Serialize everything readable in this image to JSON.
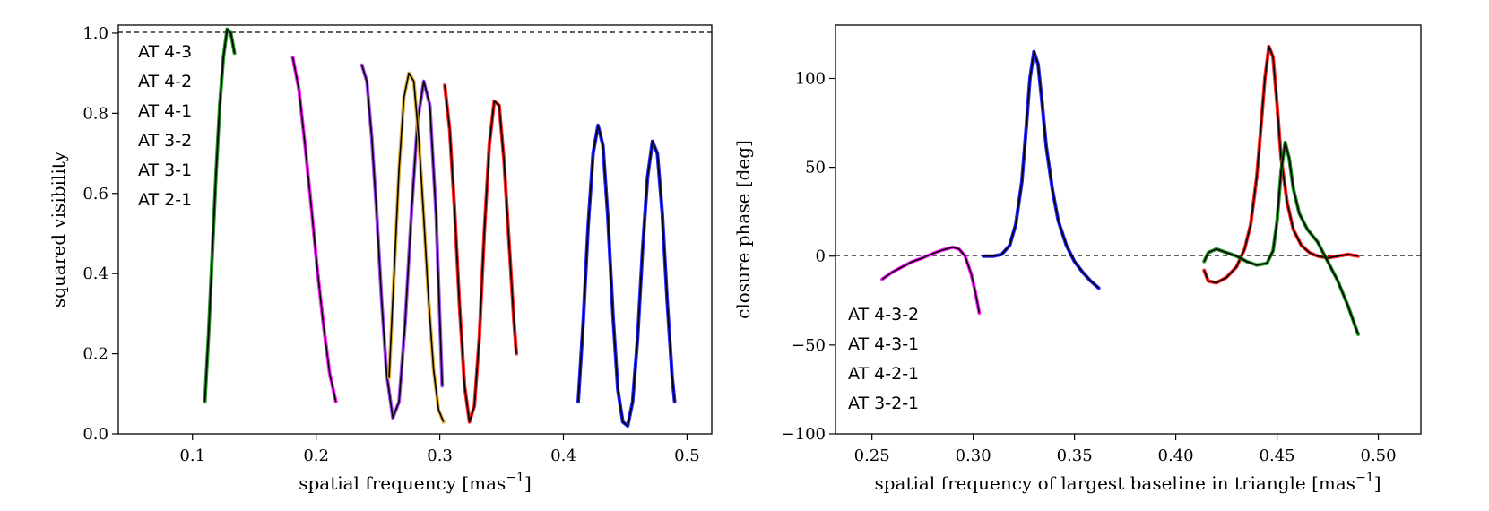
{
  "chart_data": [
    {
      "type": "line",
      "xlabel": "spatial frequency [mas",
      "xlabel_sup": "−1",
      "xlabel_end": "]",
      "ylabel": "squared visibility",
      "xlim": [
        0.04,
        0.52
      ],
      "ylim": [
        0.0,
        1.02
      ],
      "xticks": [
        "0.1",
        "0.2",
        "0.3",
        "0.4",
        "0.5"
      ],
      "yticks": [
        "0.0",
        "0.2",
        "0.4",
        "0.6",
        "0.8",
        "1.0"
      ],
      "reference_line": 1.0,
      "legend_position": "top-left",
      "series": [
        {
          "name": "AT 4-3",
          "color": "#ff0000"
        },
        {
          "name": "AT 4-2",
          "color": "#0000ff"
        },
        {
          "name": "AT 4-1",
          "color": "#9933ee"
        },
        {
          "name": "AT 3-2",
          "color": "#008000"
        },
        {
          "name": "AT 3-1",
          "color": "#ff00ff"
        },
        {
          "name": "AT 2-1",
          "color": "#daa520"
        }
      ],
      "segments": [
        {
          "color": "#008000",
          "x": [
            0.11,
            0.113,
            0.116,
            0.119,
            0.122,
            0.125,
            0.128,
            0.131,
            0.134
          ],
          "y": [
            0.08,
            0.25,
            0.45,
            0.65,
            0.82,
            0.94,
            1.01,
            1.0,
            0.95
          ]
        },
        {
          "color": "#ff00ff",
          "x": [
            0.181,
            0.186,
            0.191,
            0.196,
            0.201,
            0.206,
            0.211,
            0.216
          ],
          "y": [
            0.94,
            0.86,
            0.72,
            0.57,
            0.41,
            0.27,
            0.15,
            0.08
          ]
        },
        {
          "color": "#9933ee",
          "x": [
            0.237,
            0.241,
            0.245,
            0.249,
            0.253,
            0.257,
            0.262,
            0.267,
            0.272,
            0.277,
            0.282,
            0.287,
            0.292,
            0.297,
            0.302
          ],
          "y": [
            0.92,
            0.88,
            0.74,
            0.55,
            0.33,
            0.15,
            0.04,
            0.08,
            0.28,
            0.55,
            0.78,
            0.88,
            0.82,
            0.55,
            0.12
          ]
        },
        {
          "color": "#daa520",
          "x": [
            0.259,
            0.263,
            0.267,
            0.271,
            0.275,
            0.279,
            0.283,
            0.287,
            0.291,
            0.295,
            0.299,
            0.303
          ],
          "y": [
            0.14,
            0.4,
            0.66,
            0.84,
            0.9,
            0.88,
            0.74,
            0.54,
            0.33,
            0.16,
            0.06,
            0.03
          ]
        },
        {
          "color": "#ff0000",
          "x": [
            0.304,
            0.308,
            0.312,
            0.316,
            0.32,
            0.324,
            0.328,
            0.332,
            0.336,
            0.34,
            0.344,
            0.348,
            0.352,
            0.356,
            0.36,
            0.362
          ],
          "y": [
            0.87,
            0.76,
            0.56,
            0.32,
            0.12,
            0.03,
            0.07,
            0.24,
            0.5,
            0.72,
            0.83,
            0.82,
            0.68,
            0.48,
            0.28,
            0.2
          ]
        },
        {
          "color": "#0000ff",
          "x": [
            0.412,
            0.416,
            0.42,
            0.424,
            0.428,
            0.432,
            0.436,
            0.44,
            0.444,
            0.448,
            0.452,
            0.456,
            0.46,
            0.464,
            0.468,
            0.472,
            0.476,
            0.48,
            0.484,
            0.488,
            0.49
          ],
          "y": [
            0.08,
            0.28,
            0.52,
            0.7,
            0.77,
            0.72,
            0.54,
            0.3,
            0.11,
            0.03,
            0.02,
            0.08,
            0.24,
            0.46,
            0.64,
            0.73,
            0.7,
            0.55,
            0.33,
            0.14,
            0.08
          ]
        }
      ]
    },
    {
      "type": "line",
      "xlabel": "spatial frequency of largest baseline in triangle [mas",
      "xlabel_sup": "−1",
      "xlabel_end": "]",
      "ylabel": "closure phase [deg]",
      "xlim": [
        0.232,
        0.521
      ],
      "ylim": [
        -100,
        130
      ],
      "xticks": [
        "0.25",
        "0.30",
        "0.35",
        "0.40",
        "0.45",
        "0.50"
      ],
      "yticks": [
        "−100",
        "−50",
        "0",
        "50",
        "100"
      ],
      "reference_line": 0,
      "legend_position": "lower-left",
      "series": [
        {
          "name": "AT 4-3-2",
          "color": "#ff0000"
        },
        {
          "name": "AT 4-3-1",
          "color": "#0000ff"
        },
        {
          "name": "AT 4-2-1",
          "color": "#008000"
        },
        {
          "name": "AT 3-2-1",
          "color": "#ff00ff"
        }
      ],
      "segments": [
        {
          "color": "#ff00ff",
          "x": [
            0.255,
            0.26,
            0.265,
            0.27,
            0.275,
            0.28,
            0.285,
            0.29,
            0.293,
            0.296,
            0.299,
            0.301,
            0.303
          ],
          "y": [
            -13,
            -9,
            -6,
            -3,
            -1,
            1.5,
            3.5,
            5,
            4,
            0,
            -10,
            -20,
            -32
          ]
        },
        {
          "color": "#0000ff",
          "x": [
            0.305,
            0.31,
            0.314,
            0.318,
            0.321,
            0.324,
            0.326,
            0.328,
            0.33,
            0.332,
            0.334,
            0.336,
            0.339,
            0.342,
            0.346,
            0.35,
            0.354,
            0.358,
            0.362
          ],
          "y": [
            0,
            0,
            1,
            6,
            18,
            42,
            70,
            100,
            115,
            108,
            86,
            62,
            38,
            20,
            6,
            -3,
            -9,
            -14,
            -18
          ]
        },
        {
          "color": "#ff0000",
          "x": [
            0.414,
            0.416,
            0.42,
            0.425,
            0.43,
            0.434,
            0.437,
            0.44,
            0.442,
            0.444,
            0.446,
            0.448,
            0.45,
            0.452,
            0.455,
            0.458,
            0.462,
            0.466,
            0.47,
            0.475,
            0.48,
            0.485,
            0.49
          ],
          "y": [
            -8,
            -14,
            -15,
            -12,
            -6,
            4,
            18,
            45,
            72,
            100,
            118,
            112,
            85,
            55,
            30,
            15,
            6,
            2,
            0,
            -1,
            0,
            1,
            0
          ]
        },
        {
          "color": "#008000",
          "x": [
            0.414,
            0.416,
            0.42,
            0.425,
            0.43,
            0.435,
            0.44,
            0.445,
            0.448,
            0.45,
            0.452,
            0.454,
            0.456,
            0.458,
            0.461,
            0.465,
            0.47,
            0.475,
            0.48,
            0.485,
            0.49
          ],
          "y": [
            -3,
            2,
            4,
            2,
            0,
            -3,
            -5,
            -4,
            3,
            20,
            48,
            64,
            55,
            38,
            24,
            15,
            8,
            -3,
            -14,
            -28,
            -44
          ]
        }
      ]
    }
  ]
}
